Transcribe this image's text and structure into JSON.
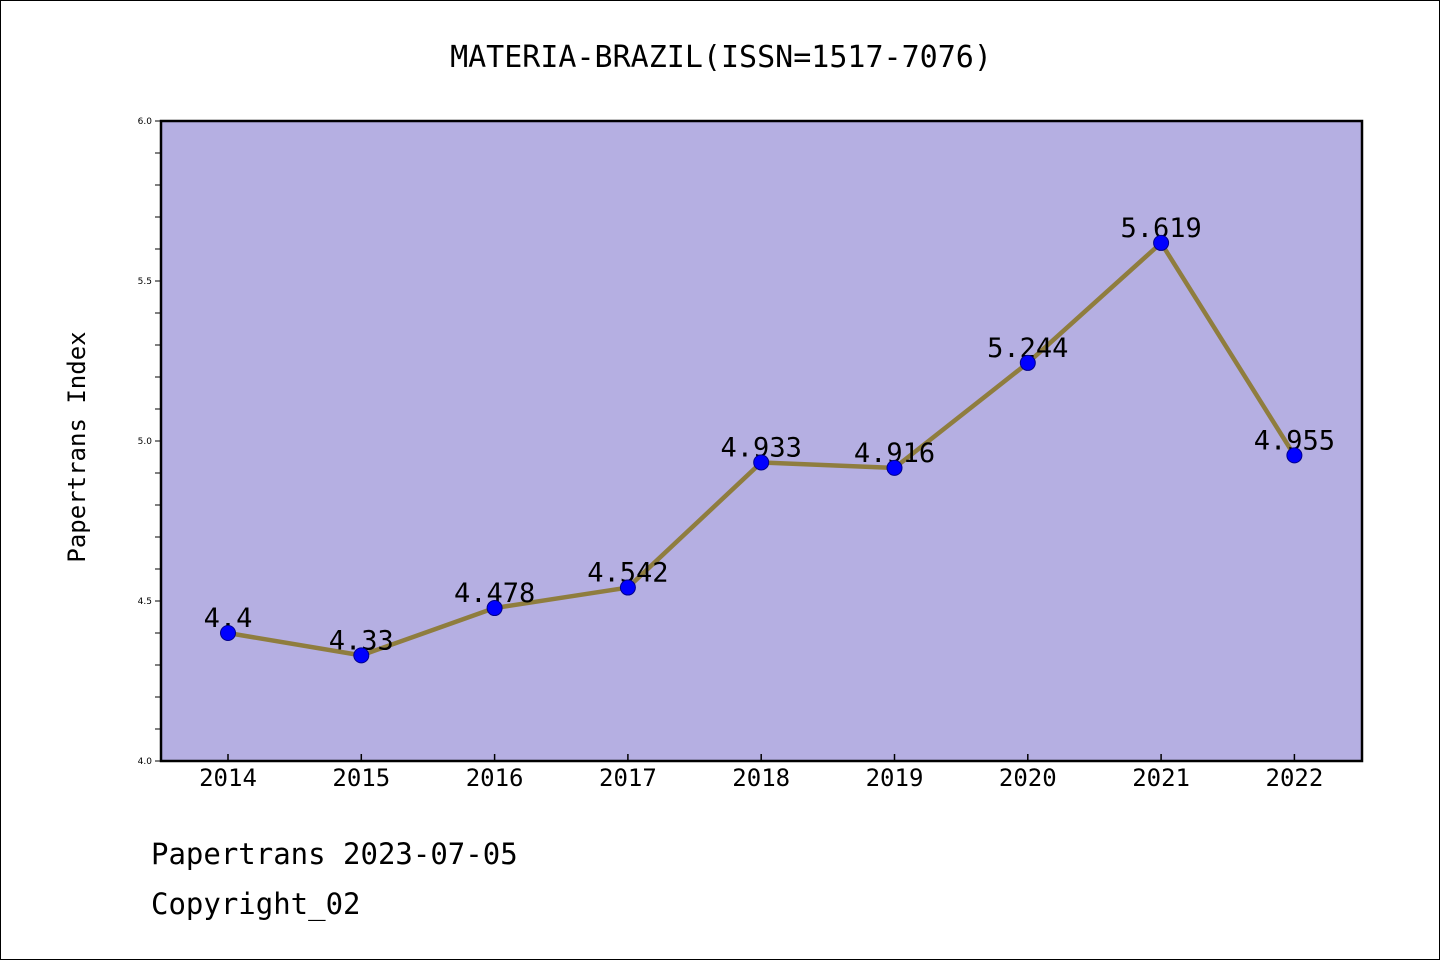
{
  "footer": {
    "line1": "Papertrans 2023-07-05",
    "line2": "Copyright_02"
  },
  "colors": {
    "plot_background": "#b5afe2",
    "line": "#8f7d3e",
    "marker": "#0000ff"
  },
  "chart_data": {
    "type": "line",
    "title": "MATERIA-BRAZIL(ISSN=1517-7076)",
    "xlabel": "",
    "ylabel": "Papertrans Index",
    "categories": [
      "2014",
      "2015",
      "2016",
      "2017",
      "2018",
      "2019",
      "2020",
      "2021",
      "2022"
    ],
    "series": [
      {
        "values": [
          4.4,
          4.33,
          4.478,
          4.542,
          4.933,
          4.916,
          5.244,
          5.619,
          4.955
        ],
        "labels": [
          "4.4",
          "4.33",
          "4.478",
          "4.542",
          "4.933",
          "4.916",
          "5.244",
          "5.619",
          "4.955"
        ]
      }
    ],
    "ylim": [
      4.0,
      6.0
    ],
    "yticks": [
      "4.0",
      "4.5",
      "5.0",
      "5.5",
      "6.0"
    ],
    "grid": false,
    "legend": "none"
  }
}
